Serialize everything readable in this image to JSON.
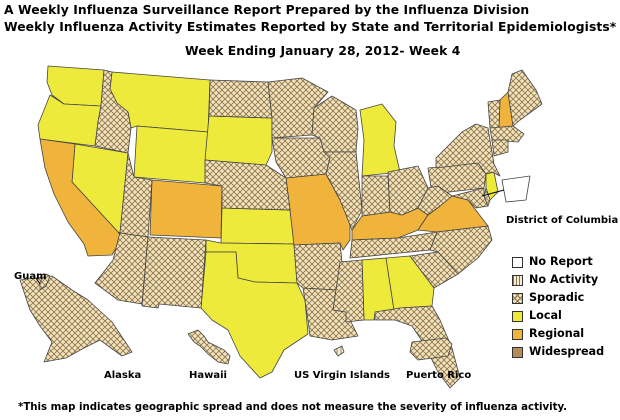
{
  "title": {
    "line1": "A Weekly Influenza Surveillance Report Prepared by the Influenza Division",
    "line2": "Weekly Influenza Activity Estimates Reported by State and Territorial Epidemiologists*",
    "week": "Week Ending January 28, 2012- Week 4"
  },
  "labels": {
    "dc": "District of Columbia",
    "guam": "Guam",
    "alaska": "Alaska",
    "hawaii": "Hawaii",
    "usvi": "US Virgin Islands",
    "pr": "Puerto Rico"
  },
  "legend": [
    {
      "label": "No Report",
      "color": "#ffffff",
      "pattern": "none"
    },
    {
      "label": "No Activity",
      "color": "#f5ecd6",
      "pattern": "lines"
    },
    {
      "label": "Sporadic",
      "color": "#f3e2bd",
      "pattern": "crosshatch"
    },
    {
      "label": "Local",
      "color": "#eeea3c",
      "pattern": "none"
    },
    {
      "label": "Regional",
      "color": "#f0b43c",
      "pattern": "none"
    },
    {
      "label": "Widespread",
      "color": "#b48c5a",
      "pattern": "none"
    }
  ],
  "regions": {
    "local": [
      "WA",
      "OR",
      "NV",
      "MT",
      "WY",
      "SD",
      "KS",
      "OK",
      "TX",
      "MI",
      "AL",
      "GA",
      "NJ"
    ],
    "regional": [
      "CA",
      "CO",
      "MO",
      "KY",
      "VA",
      "NH"
    ],
    "sporadic": [
      "ID",
      "UT",
      "AZ",
      "NM",
      "ND",
      "NE",
      "MN",
      "IA",
      "WI",
      "IL",
      "IN",
      "OH",
      "AR",
      "LA",
      "MS",
      "TN",
      "NC",
      "SC",
      "FL",
      "PA",
      "NY",
      "WV",
      "MD",
      "DE",
      "ME",
      "VT",
      "MA",
      "CT",
      "AK",
      "HI",
      "Guam",
      "PR"
    ],
    "no_activity": [
      "USVI"
    ],
    "no_report": [
      "DC"
    ]
  },
  "footnote": "*This map indicates geographic spread and does not measure the severity of influenza activity."
}
